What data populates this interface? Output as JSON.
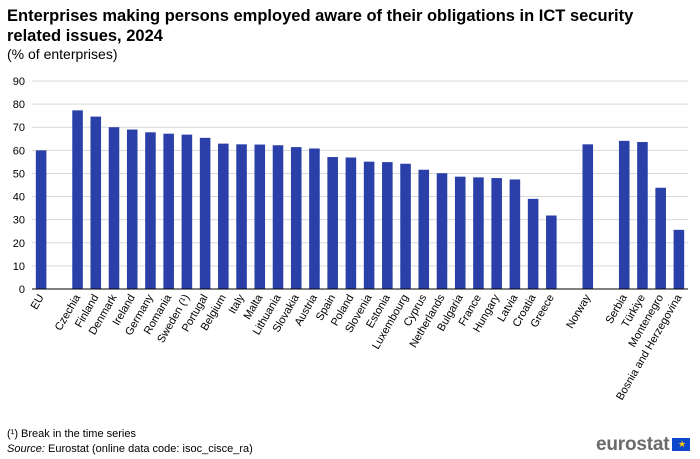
{
  "title": "Enterprises making persons employed aware of their obligations in ICT security related issues, 2024",
  "subtitle": "(% of enterprises)",
  "footnote": "(¹) Break in the time series",
  "source_label": "Source:",
  "source_text": "Eurostat (online data code: isoc_cisce_ra)",
  "logo_text": "eurostat",
  "colors": {
    "bar": "#2a3fa8",
    "grid": "#d9d9d9",
    "axis": "#000000"
  },
  "icons": {
    "logo": "eu-flag-icon"
  },
  "chart_data": {
    "type": "bar",
    "ylim": [
      0,
      90
    ],
    "yticks": [
      0,
      10,
      20,
      30,
      40,
      50,
      60,
      70,
      80,
      90
    ],
    "grid": true,
    "categories": [
      "EU",
      "",
      "Czechia",
      "Finland",
      "Denmark",
      "Ireland",
      "Germany",
      "Romania",
      "Sweden (¹)",
      "Portugal",
      "Belgium",
      "Italy",
      "Malta",
      "Lithuania",
      "Slovakia",
      "Austria",
      "Spain",
      "Poland",
      "Slovenia",
      "Estonia",
      "Luxembourg",
      "Cyprus",
      "Netherlands",
      "Bulgaria",
      "France",
      "Hungary",
      "Latvia",
      "Croatia",
      "Greece",
      "",
      "Norway",
      "",
      "Serbia",
      "Türkiye",
      "Montenegro",
      "Bosnia and Herzegovina"
    ],
    "values": [
      60.0,
      null,
      77.3,
      74.6,
      70.0,
      69.0,
      67.8,
      67.2,
      66.8,
      65.4,
      62.9,
      62.6,
      62.5,
      62.2,
      61.4,
      60.8,
      57.1,
      56.9,
      55.1,
      54.9,
      54.2,
      51.6,
      50.1,
      48.6,
      48.3,
      48.0,
      47.4,
      39.0,
      31.8,
      null,
      62.6,
      null,
      64.1,
      63.6,
      43.8,
      25.6
    ]
  }
}
